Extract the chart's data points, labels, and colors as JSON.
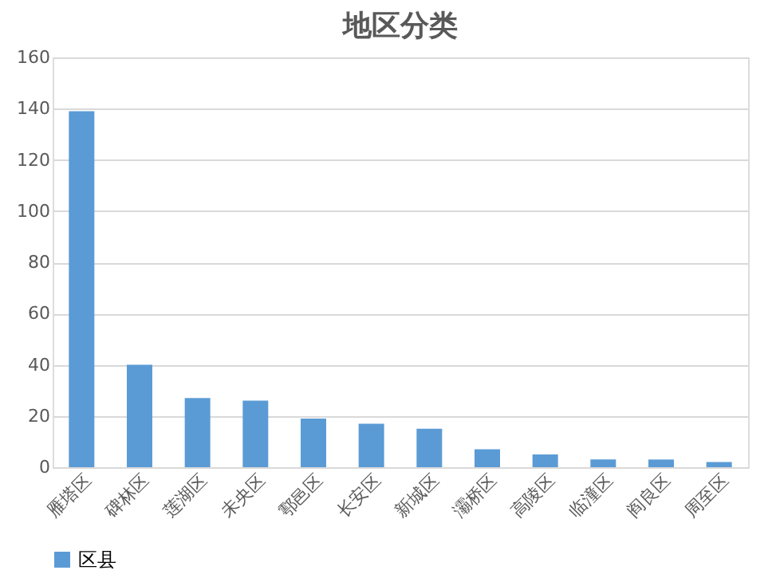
{
  "chart_data": {
    "type": "bar",
    "title": "地区分类",
    "categories": [
      "雁塔区",
      "碑林区",
      "莲湖区",
      "未央区",
      "鄠邑区",
      "长安区",
      "新城区",
      "灞桥区",
      "高陵区",
      "临潼区",
      "阎良区",
      "周至区"
    ],
    "series": [
      {
        "name": "区县",
        "color": "#5b9bd5",
        "values": [
          139,
          40,
          27,
          26,
          19,
          17,
          15,
          7,
          5,
          3,
          3,
          2
        ]
      }
    ],
    "ylim": [
      0,
      160
    ],
    "yticks": [
      0,
      20,
      40,
      60,
      80,
      100,
      120,
      140,
      160
    ],
    "grid": "y",
    "legend": "bottom"
  }
}
